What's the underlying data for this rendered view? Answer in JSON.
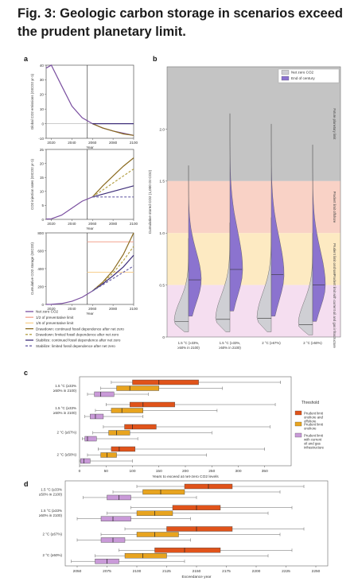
{
  "figure": {
    "title": "Fig. 3: Geologic carbon storage in scenarios exceed the prudent planetary limit."
  },
  "colors": {
    "hline": "#222222",
    "netzero": "#7a4fa0",
    "half_limit": "#f3a28e",
    "sixth_limit": "#f7cf8e",
    "draw_cont": "#8a6a1e",
    "draw_lim": "#b5a24a",
    "stab_cont": "#3f2f7a",
    "stab_lim": "#6b62a8",
    "band_gray": "#c4c4c4",
    "band_red": "#f9d2c6",
    "band_yellow": "#fdeac2",
    "band_pink": "#f5def0",
    "violin_gray": "#cfcfd4",
    "violin_purple": "#8b73cf",
    "onshore": "#e0531a",
    "prudent": "#e8a41f",
    "current": "#c99ad8"
  },
  "chart_data": [
    {
      "id": "a1",
      "panel": "a",
      "type": "line",
      "ylabel": "Global CO2 emissions (GtCO2 yr-1)",
      "xlabel": "Year",
      "x": [
        2015,
        2020,
        2030,
        2040,
        2050,
        2060,
        2070,
        2080,
        2090,
        2100
      ],
      "series": [
        {
          "key": "hist",
          "values": [
            38,
            40,
            26,
            12,
            4,
            0,
            -3,
            -5,
            -6.5,
            -8
          ]
        },
        {
          "key": "draw",
          "values": [
            null,
            null,
            null,
            null,
            null,
            0,
            -3,
            -5,
            -7,
            -8
          ]
        },
        {
          "key": "stab",
          "values": [
            null,
            null,
            null,
            null,
            null,
            0,
            0,
            0,
            0,
            0
          ]
        }
      ],
      "ylim": [
        -10,
        40
      ],
      "yticks": [
        "-10",
        "0",
        "10",
        "20",
        "30",
        "40"
      ],
      "xticks": [
        "2020",
        "2040",
        "2060",
        "2080",
        "2100"
      ]
    },
    {
      "id": "a2",
      "panel": "a",
      "type": "line",
      "ylabel": "CO2 injection rates (GtCO2 yr-1)",
      "xlabel": "Year",
      "x": [
        2015,
        2020,
        2030,
        2040,
        2050,
        2060,
        2070,
        2080,
        2090,
        2100
      ],
      "series": [
        {
          "key": "hist",
          "values": [
            0.1,
            0.2,
            1.5,
            4,
            6.5,
            8,
            null,
            null,
            null,
            null
          ]
        },
        {
          "key": "draw_cont",
          "values": [
            null,
            null,
            null,
            null,
            null,
            8,
            12,
            15.5,
            19,
            22
          ]
        },
        {
          "key": "draw_lim",
          "values": [
            null,
            null,
            null,
            null,
            null,
            8,
            10.5,
            13,
            15.5,
            18
          ]
        },
        {
          "key": "stab_cont",
          "values": [
            null,
            null,
            null,
            null,
            null,
            8,
            9,
            10,
            11,
            12
          ]
        },
        {
          "key": "stab_lim",
          "values": [
            null,
            null,
            null,
            null,
            null,
            8,
            8,
            8,
            8,
            8
          ]
        }
      ],
      "ylim": [
        0,
        25
      ],
      "yticks": [
        "0",
        "5",
        "10",
        "15",
        "20",
        "25"
      ],
      "xticks": [
        "2020",
        "2040",
        "2060",
        "2080",
        "2100"
      ]
    },
    {
      "id": "a3",
      "panel": "a",
      "type": "line",
      "ylabel": "Cumulative CO2 storage (GtCO2)",
      "xlabel": "Year",
      "x": [
        2015,
        2020,
        2030,
        2040,
        2050,
        2060,
        2070,
        2080,
        2090,
        2100
      ],
      "series": [
        {
          "key": "hist",
          "values": [
            0,
            1,
            10,
            35,
            80,
            150,
            null,
            null,
            null,
            null
          ]
        },
        {
          "key": "draw_cont",
          "values": [
            null,
            null,
            null,
            null,
            null,
            150,
            250,
            380,
            560,
            800
          ]
        },
        {
          "key": "draw_lim",
          "values": [
            null,
            null,
            null,
            null,
            null,
            150,
            240,
            350,
            490,
            650
          ]
        },
        {
          "key": "stab_cont",
          "values": [
            null,
            null,
            null,
            null,
            null,
            150,
            230,
            320,
            420,
            550
          ]
        },
        {
          "key": "stab_lim",
          "values": [
            null,
            null,
            null,
            null,
            null,
            150,
            220,
            290,
            360,
            430
          ]
        }
      ],
      "ylim": [
        0,
        800
      ],
      "yticks": [
        "0",
        "200",
        "400",
        "600",
        "800"
      ],
      "xticks": [
        "2020",
        "2040",
        "2060",
        "2080",
        "2100"
      ]
    },
    {
      "id": "b",
      "panel": "b",
      "type": "violin",
      "ylabel": "Cumulative stored CO2 (1,000 Gt CO2)",
      "ylim": [
        0,
        2.6
      ],
      "yticks": [
        "0",
        "0.5",
        "1.0",
        "1.5",
        "2.0"
      ],
      "categories": [
        "1.5 °C (≥33%, ≥50% in 2100)",
        "1.5 °C (≥33%, ≥50% in 2100)",
        "2 °C (≥67%)",
        "2 °C (≥50%)"
      ],
      "net_zero": {
        "min": [
          0.05,
          0.05,
          0.05,
          0.02
        ],
        "max": [
          0.95,
          1.1,
          1.15,
          1.0
        ],
        "median": [
          0.15,
          0.17,
          0.18,
          0.12
        ]
      },
      "end_century": {
        "min": [
          0.2,
          0.25,
          0.2,
          0.15
        ],
        "max": [
          1.65,
          2.15,
          2.05,
          1.85
        ],
        "median": [
          0.55,
          0.65,
          0.6,
          0.5
        ]
      },
      "bands": [
        {
          "key": "gray",
          "from": 1.5,
          "to": 2.6,
          "label": "Future planetary limit"
        },
        {
          "key": "red",
          "from": 1.0,
          "to": 1.5,
          "label": "Prudent limit offshore"
        },
        {
          "key": "yellow",
          "from": 0.5,
          "to": 1.0,
          "label": "Prudent limit onshore"
        },
        {
          "key": "pink",
          "from": 0.0,
          "to": 0.5,
          "label": "Prudent limit with current oil and gas infrastructure"
        }
      ]
    },
    {
      "id": "c",
      "panel": "c",
      "type": "box",
      "xlabel": "Years to exceed at net-zero CO2 levels",
      "xlim": [
        0,
        400
      ],
      "xticks": [
        "0",
        "50",
        "100",
        "150",
        "200",
        "250",
        "300",
        "350"
      ],
      "groups": [
        "1.5 °C (≥33%, ≥50% in 2100)",
        "1.5 °C (≥33%, ≥50% in 2100)",
        "2 °C (≥67%)",
        "2 °C (≥50%)"
      ],
      "series": [
        {
          "key": "onshore",
          "boxes": [
            {
              "min": 60,
              "q1": 100,
              "med": 150,
              "q3": 225,
              "max": 380
            },
            {
              "min": 50,
              "q1": 95,
              "med": 120,
              "q3": 180,
              "max": 370
            },
            {
              "min": 45,
              "q1": 85,
              "med": 100,
              "q3": 145,
              "max": 360
            },
            {
              "min": 35,
              "q1": 60,
              "med": 75,
              "q3": 105,
              "max": 350
            }
          ]
        },
        {
          "key": "prudent",
          "boxes": [
            {
              "min": 40,
              "q1": 70,
              "med": 95,
              "q3": 150,
              "max": 270
            },
            {
              "min": 30,
              "q1": 60,
              "med": 80,
              "q3": 120,
              "max": 260
            },
            {
              "min": 25,
              "q1": 55,
              "med": 70,
              "q3": 95,
              "max": 250
            },
            {
              "min": 15,
              "q1": 40,
              "med": 52,
              "q3": 70,
              "max": 240
            }
          ]
        },
        {
          "key": "current",
          "boxes": [
            {
              "min": 15,
              "q1": 28,
              "med": 40,
              "q3": 65,
              "max": 130
            },
            {
              "min": 10,
              "q1": 20,
              "med": 30,
              "q3": 45,
              "max": 120
            },
            {
              "min": 5,
              "q1": 10,
              "med": 15,
              "q3": 32,
              "max": 110
            },
            {
              "min": 0,
              "q1": 2,
              "med": 8,
              "q3": 20,
              "max": 100
            }
          ]
        }
      ]
    },
    {
      "id": "d",
      "panel": "d",
      "type": "box",
      "xlabel": "Exceedance year",
      "xlim": [
        2040,
        2260
      ],
      "xticks": [
        "2050",
        "2075",
        "2100",
        "2125",
        "2150",
        "2175",
        "2200",
        "2225",
        "2250"
      ],
      "groups": [
        "1.5 °C (≥33%, ≥50% in 2100)",
        "1.5 °C (≥33%, ≥50% in 2100)",
        "2 °C (≥67%)",
        "2 °C (≥50%)"
      ],
      "series": [
        {
          "key": "onshore",
          "boxes": [
            {
              "min": 2100,
              "q1": 2140,
              "med": 2160,
              "q3": 2180,
              "max": 2240
            },
            {
              "min": 2095,
              "q1": 2130,
              "med": 2150,
              "q3": 2170,
              "max": 2230
            },
            {
              "min": 2090,
              "q1": 2125,
              "med": 2150,
              "q3": 2180,
              "max": 2240
            },
            {
              "min": 2085,
              "q1": 2115,
              "med": 2140,
              "q3": 2170,
              "max": 2230
            }
          ]
        },
        {
          "key": "prudent",
          "boxes": [
            {
              "min": 2080,
              "q1": 2105,
              "med": 2120,
              "q3": 2140,
              "max": 2220
            },
            {
              "min": 2075,
              "q1": 2100,
              "med": 2115,
              "q3": 2130,
              "max": 2210
            },
            {
              "min": 2070,
              "q1": 2100,
              "med": 2115,
              "q3": 2135,
              "max": 2220
            },
            {
              "min": 2065,
              "q1": 2090,
              "med": 2105,
              "q3": 2125,
              "max": 2210
            }
          ]
        },
        {
          "key": "current",
          "boxes": [
            {
              "min": 2055,
              "q1": 2075,
              "med": 2085,
              "q3": 2095,
              "max": 2150
            },
            {
              "min": 2050,
              "q1": 2070,
              "med": 2080,
              "q3": 2095,
              "max": 2145
            },
            {
              "min": 2050,
              "q1": 2070,
              "med": 2080,
              "q3": 2090,
              "max": 2145
            },
            {
              "min": 2045,
              "q1": 2065,
              "med": 2075,
              "q3": 2085,
              "max": 2140
            }
          ]
        }
      ]
    }
  ],
  "legend_a": [
    {
      "label": "Net zero CO2",
      "color": "#7a4fa0",
      "dash": ""
    },
    {
      "label": "1/2 of preventative limit",
      "color": "#f3a28e",
      "dash": ""
    },
    {
      "label": "1/6 of preventative limit",
      "color": "#f7cf8e",
      "dash": ""
    },
    {
      "label": "Drawdown: continued fossil dependence after net zero",
      "color": "#8a6a1e",
      "dash": ""
    },
    {
      "label": "Drawdown: limited fossil dependence after net zero",
      "color": "#b5a24a",
      "dash": "3,2"
    },
    {
      "label": "Stabilize: continued fossil dependence after net zero",
      "color": "#3f2f7a",
      "dash": ""
    },
    {
      "label": "Stabilize: limited fossil dependence after net zero",
      "color": "#6b62a8",
      "dash": "3,2"
    }
  ],
  "legend_b": [
    {
      "label": "Net zero CO2",
      "color": "#cfcfd4"
    },
    {
      "label": "End of century",
      "color": "#8b73cf"
    }
  ],
  "legend_c": {
    "title": "Threshold",
    "items": [
      {
        "label": "Prudent limit onshore and offshore",
        "color": "#e0531a"
      },
      {
        "label": "Prudent limit onshore",
        "color": "#e8a41f"
      },
      {
        "label": "Prudent limit with current oil and gas infrastructure",
        "color": "#c99ad8"
      }
    ]
  },
  "panel_labels": [
    "a",
    "b",
    "c",
    "d"
  ]
}
